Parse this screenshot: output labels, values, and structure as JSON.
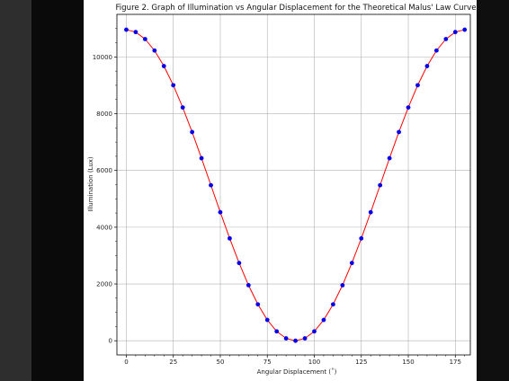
{
  "chart_data": {
    "type": "line",
    "title": "Figure 2. Graph of Illumination vs Angular Displacement for the Theoretical Malus' Law Curve",
    "xlabel": "Angular Displacement (˚)",
    "ylabel": "Illumination (Lux)",
    "xlim": [
      -5,
      183
    ],
    "ylim": [
      -500,
      11500
    ],
    "x_ticks": [
      0,
      25,
      50,
      75,
      100,
      125,
      150,
      175
    ],
    "y_ticks": [
      0,
      2000,
      4000,
      6000,
      8000,
      10000
    ],
    "x_tick_labels": [
      "0",
      "25",
      "50",
      "75",
      "100",
      "125",
      "150",
      "175"
    ],
    "y_tick_labels": [
      "0",
      "2000",
      "4000",
      "6000",
      "8000",
      "10000"
    ],
    "grid": true,
    "series": [
      {
        "line_color": "#ff0000",
        "marker_color": "#0000ee",
        "x": [
          0,
          5,
          10,
          15,
          20,
          25,
          30,
          35,
          40,
          45,
          50,
          55,
          60,
          65,
          70,
          75,
          80,
          85,
          90,
          95,
          100,
          105,
          110,
          115,
          120,
          125,
          130,
          135,
          140,
          145,
          150,
          155,
          160,
          165,
          170,
          175,
          180
        ],
        "y": [
          10960,
          10877,
          10630,
          10226,
          9678,
          9003,
          8220,
          7354,
          6432,
          5480,
          4528,
          3606,
          2740,
          1957,
          1282,
          734,
          330,
          83,
          0,
          83,
          330,
          734,
          1282,
          1957,
          2740,
          3606,
          4528,
          5480,
          6432,
          7354,
          8220,
          9003,
          9678,
          10226,
          10630,
          10877,
          10960
        ]
      }
    ]
  }
}
